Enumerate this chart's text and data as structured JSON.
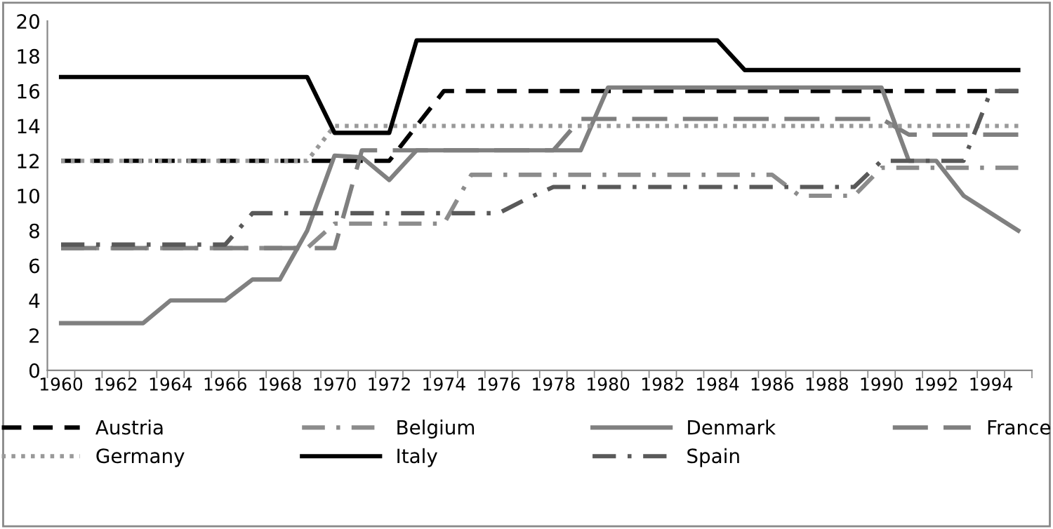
{
  "chart_data": {
    "type": "line",
    "categories": [
      "1960",
      null,
      "1962",
      null,
      "1964",
      null,
      "1966",
      null,
      "1968",
      null,
      "1970",
      null,
      "1972",
      null,
      "1974",
      null,
      "1976",
      null,
      "1978",
      null,
      "1980",
      null,
      "1982",
      null,
      "1984",
      null,
      "1986",
      null,
      "1988",
      null,
      "1990",
      null,
      "1992",
      null,
      "1994",
      null
    ],
    "series": [
      {
        "name": "Austria",
        "color": "#000000",
        "line_style": "dashed",
        "values": [
          12,
          12,
          12,
          12,
          12,
          12,
          12,
          12,
          12,
          12,
          12,
          12,
          12,
          14,
          16,
          16,
          16,
          16,
          16,
          16,
          16,
          16,
          16,
          16,
          16,
          16,
          16,
          16,
          16,
          16,
          16,
          16,
          16,
          16,
          16,
          16
        ]
      },
      {
        "name": "Belgium",
        "color": "#8c8c8c",
        "line_style": "dashdot",
        "values": [
          7,
          7,
          7,
          7,
          7,
          7,
          7,
          7,
          7,
          7,
          8.4,
          8.4,
          8.4,
          8.4,
          8.4,
          11.2,
          11.2,
          11.2,
          11.2,
          11.2,
          11.2,
          11.2,
          11.2,
          11.2,
          11.2,
          11.2,
          11.2,
          10,
          10,
          10,
          11.6,
          11.6,
          11.6,
          11.6,
          11.6,
          11.6
        ]
      },
      {
        "name": "Denmark",
        "color": "#808080",
        "line_style": "solid",
        "values": [
          2.7,
          2.7,
          2.7,
          2.7,
          4,
          4,
          4,
          5.2,
          5.2,
          8,
          12.3,
          12.2,
          10.9,
          12.6,
          12.6,
          12.6,
          12.6,
          12.6,
          12.6,
          12.6,
          16.2,
          16.2,
          16.2,
          16.2,
          16.2,
          16.2,
          16.2,
          16.2,
          16.2,
          16.2,
          16.2,
          12,
          12,
          10,
          9,
          8
        ]
      },
      {
        "name": "France",
        "color": "#7f7f7f",
        "line_style": "longdash",
        "values": [
          7,
          7,
          7,
          7,
          7,
          7,
          7,
          7,
          7,
          7,
          7,
          12.6,
          12.6,
          12.6,
          12.6,
          12.6,
          12.6,
          12.6,
          12.6,
          14.4,
          14.4,
          14.4,
          14.4,
          14.4,
          14.4,
          14.4,
          14.4,
          14.4,
          14.4,
          14.4,
          14.4,
          13.5,
          13.5,
          13.5,
          13.5,
          13.5
        ]
      },
      {
        "name": "Germany",
        "color": "#999999",
        "line_style": "dotted",
        "values": [
          12,
          12,
          12,
          12,
          12,
          12,
          12,
          12,
          12,
          12,
          14,
          14,
          14,
          14,
          14,
          14,
          14,
          14,
          14,
          14,
          14,
          14,
          14,
          14,
          14,
          14,
          14,
          14,
          14,
          14,
          14,
          14,
          14,
          14,
          14,
          14
        ]
      },
      {
        "name": "Italy",
        "color": "#000000",
        "line_style": "solid",
        "values": [
          16.8,
          16.8,
          16.8,
          16.8,
          16.8,
          16.8,
          16.8,
          16.8,
          16.8,
          16.8,
          13.6,
          13.6,
          13.6,
          18.9,
          18.9,
          18.9,
          18.9,
          18.9,
          18.9,
          18.9,
          18.9,
          18.9,
          18.9,
          18.9,
          18.9,
          17.2,
          17.2,
          17.2,
          17.2,
          17.2,
          17.2,
          17.2,
          17.2,
          17.2,
          17.2,
          17.2
        ]
      },
      {
        "name": "Spain",
        "color": "#595959",
        "line_style": "dashdot",
        "values": [
          7.2,
          7.2,
          7.2,
          7.2,
          7.2,
          7.2,
          7.2,
          9,
          9,
          9,
          9,
          9,
          9,
          9,
          9,
          9,
          9,
          9.8,
          10.5,
          10.5,
          10.5,
          10.5,
          10.5,
          10.5,
          10.5,
          10.5,
          10.5,
          10.5,
          10.5,
          10.5,
          12,
          12,
          12,
          12,
          16,
          16
        ]
      }
    ],
    "ylim": [
      0,
      20
    ],
    "yticks": [
      0,
      2,
      4,
      6,
      8,
      10,
      12,
      14,
      16,
      18,
      20
    ],
    "grid": false,
    "legend": "bottom"
  }
}
